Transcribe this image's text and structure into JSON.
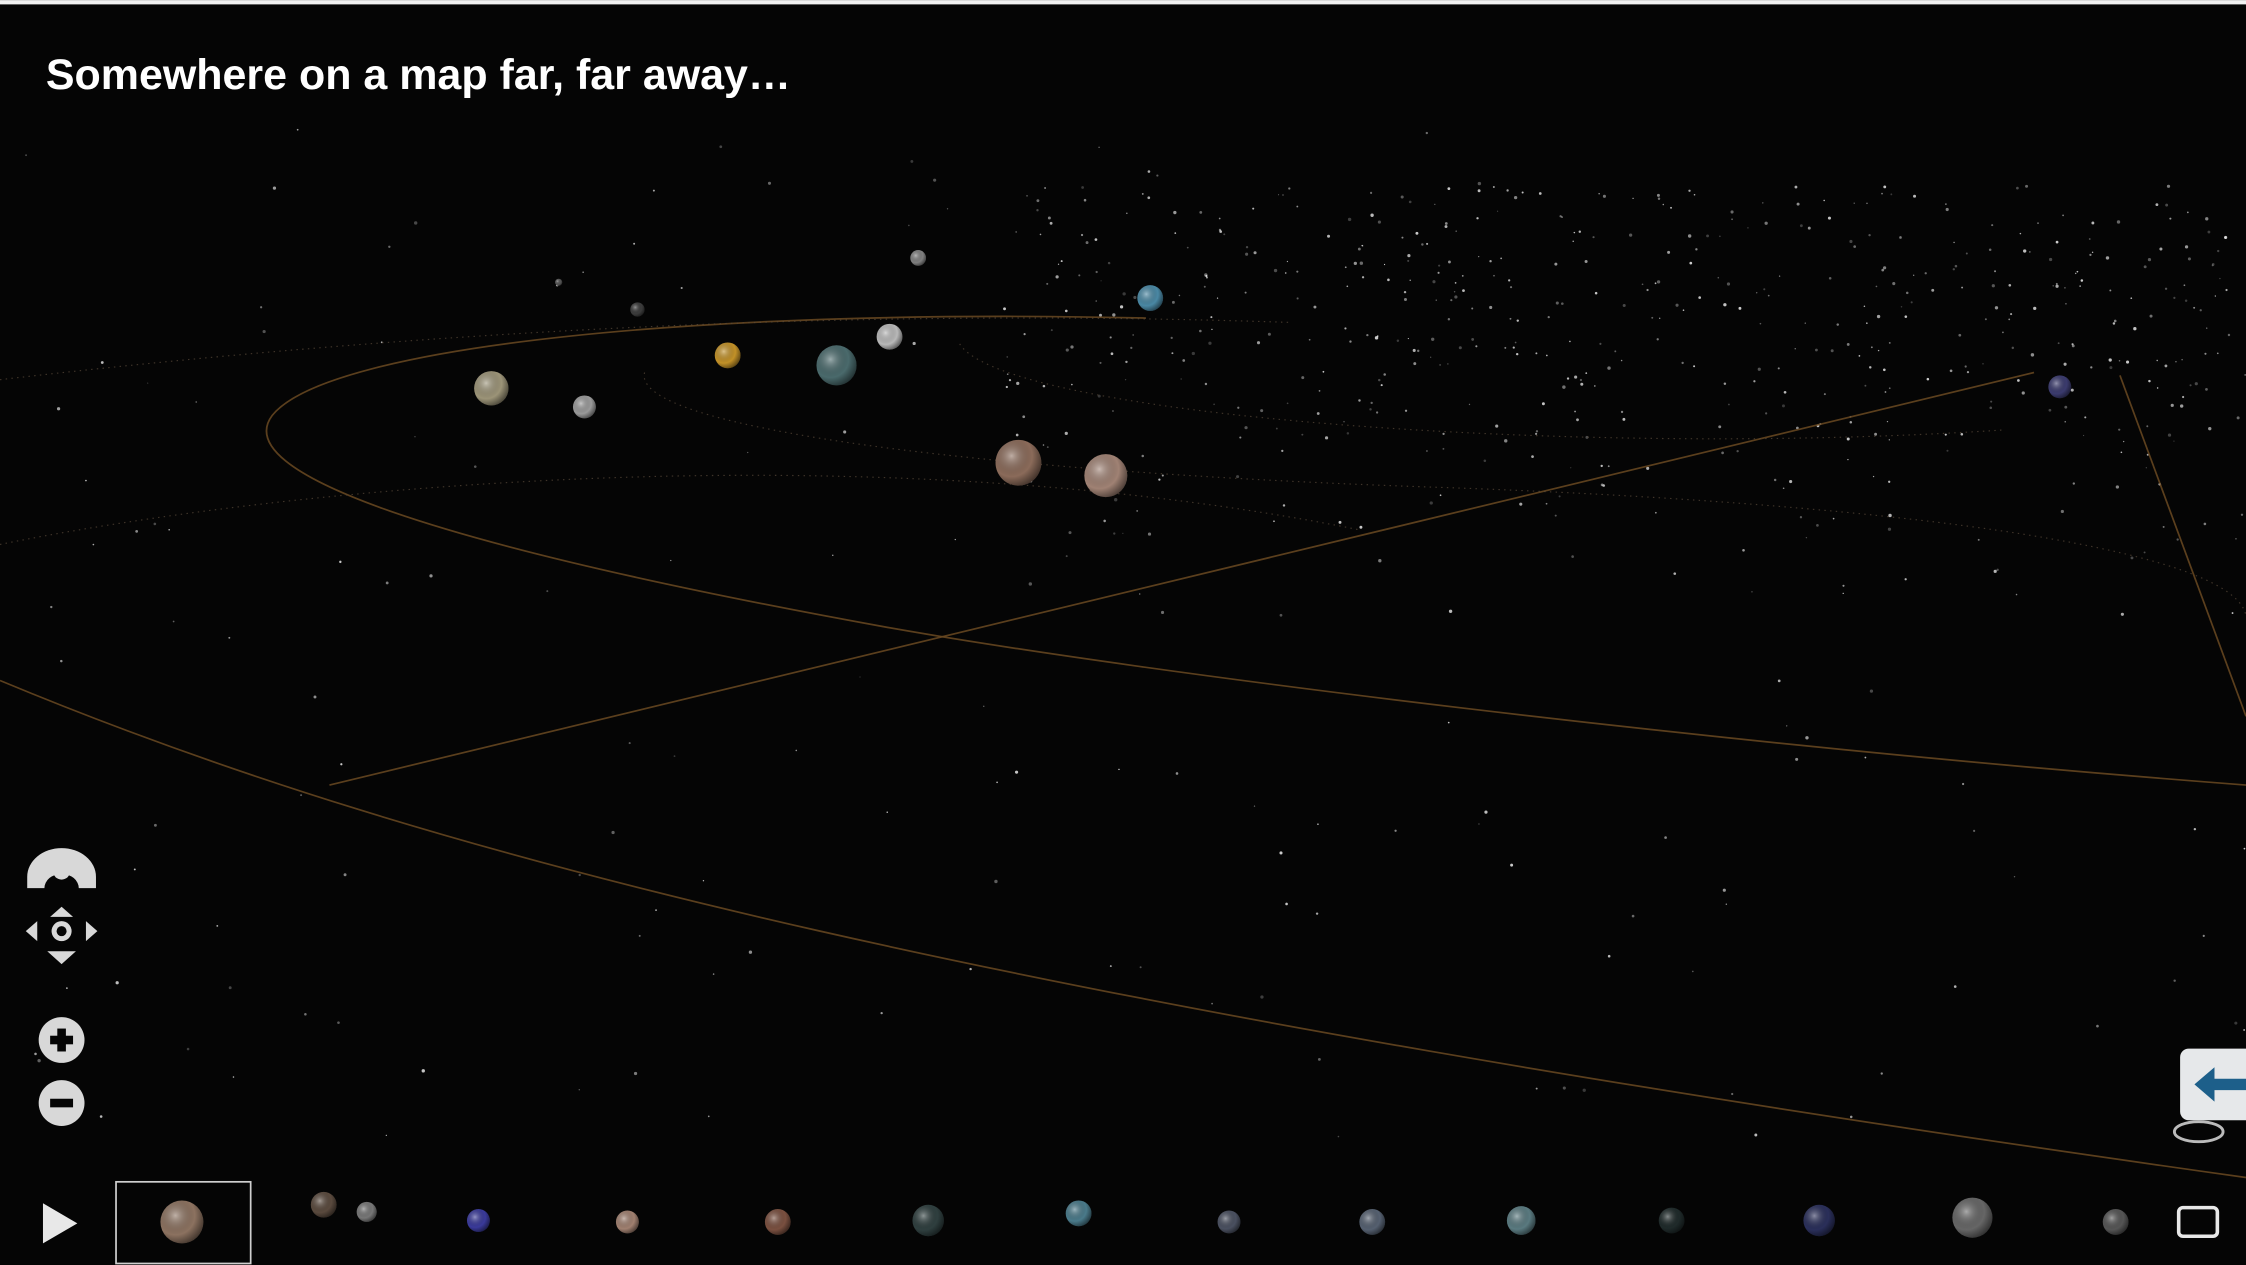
{
  "header": {
    "title": "Somewhere on a map far, far away…"
  }
}
